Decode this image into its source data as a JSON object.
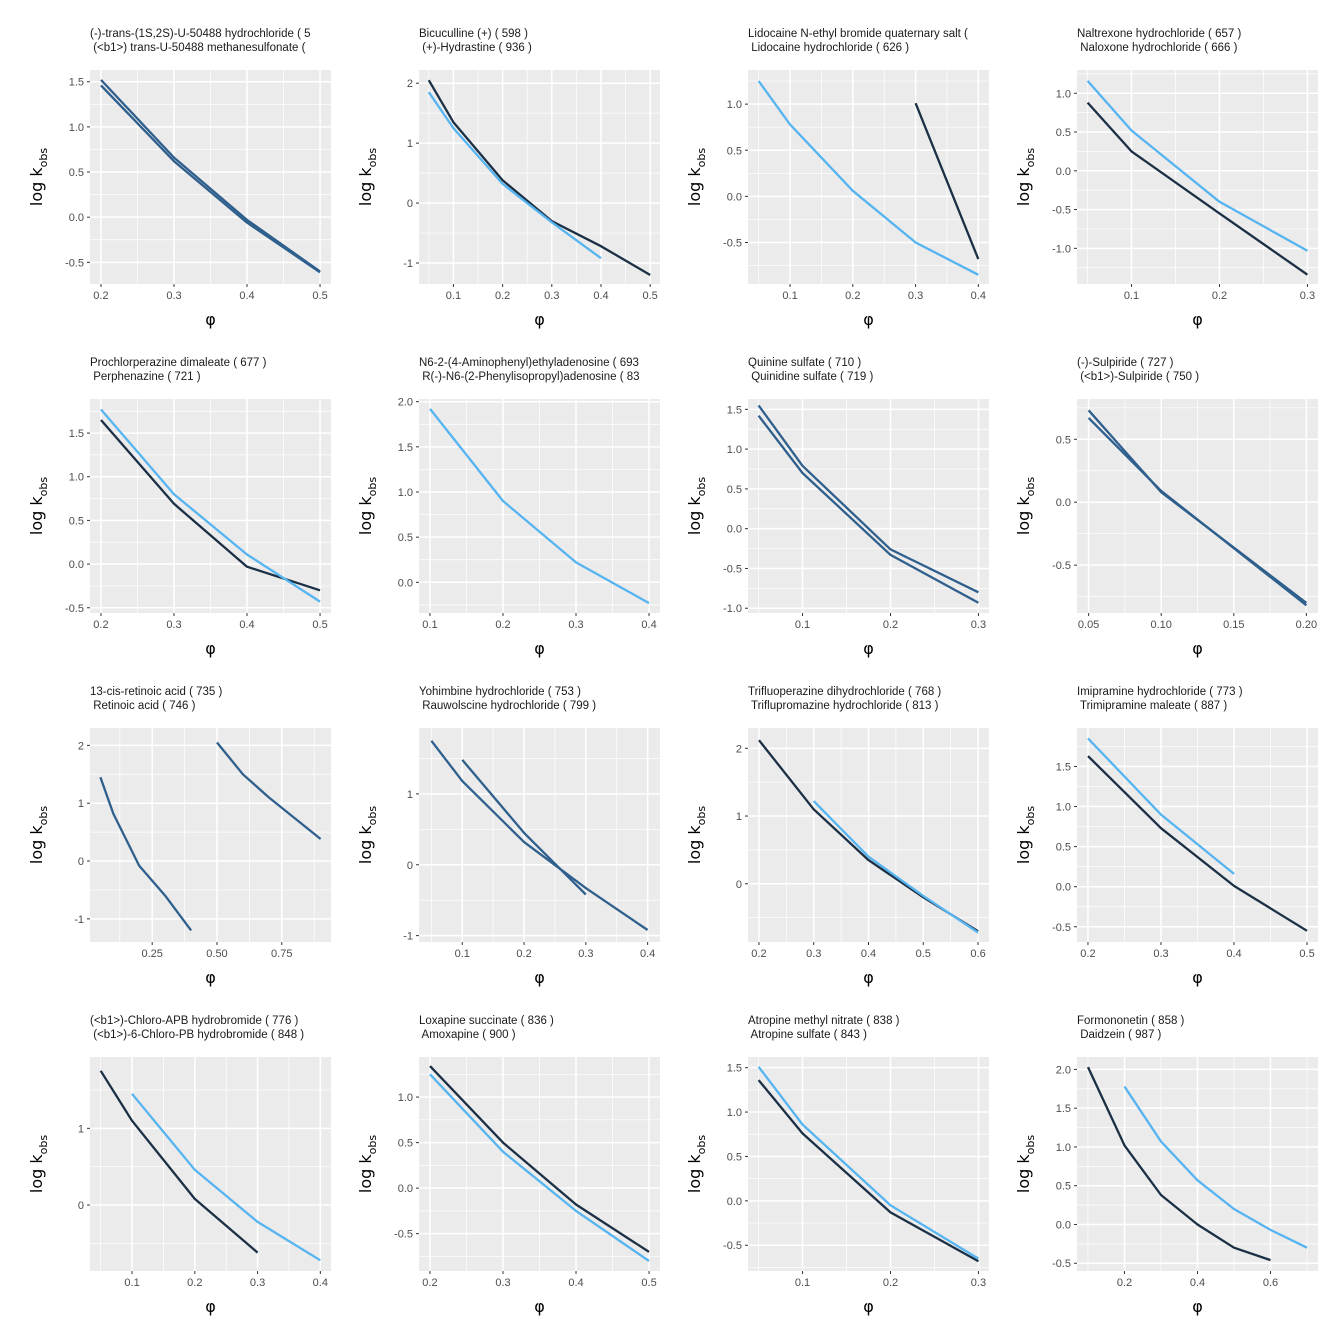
{
  "axis_labels": {
    "x": "φ",
    "y_main": "log k",
    "y_sub": "obs"
  },
  "colors": {
    "dark": "#1B2F45",
    "light": "#56B4F0",
    "panel_bg": "#EBEBEB",
    "grid": "#FFFFFF"
  },
  "chart_data": [
    {
      "type": "line",
      "title": [
        "(-)-trans-(1S,2S)-U-50488 hydrochloride ( 5",
        " (<b1>) trans-U-50488 methanesulfonate ("
      ],
      "xlim": [
        0.185,
        0.515
      ],
      "ylim": [
        -0.74,
        1.63
      ],
      "xticks": [
        0.2,
        0.3,
        0.4,
        0.5
      ],
      "yticks": [
        -0.5,
        0.0,
        0.5,
        1.0,
        1.5
      ],
      "series": [
        {
          "color": "#2F5F8C",
          "x": [
            0.2,
            0.3,
            0.4,
            0.5
          ],
          "y": [
            1.52,
            0.66,
            -0.03,
            -0.6
          ]
        },
        {
          "color": "#2F5F8C",
          "x": [
            0.2,
            0.3,
            0.4,
            0.5
          ],
          "y": [
            1.46,
            0.62,
            -0.06,
            -0.61
          ]
        }
      ]
    },
    {
      "type": "line",
      "title": [
        "Bicuculline (+) ( 598 )",
        " (+)-Hydrastine ( 936 )"
      ],
      "xlim": [
        0.03,
        0.52
      ],
      "ylim": [
        -1.35,
        2.22
      ],
      "xticks": [
        0.1,
        0.2,
        0.3,
        0.4,
        0.5
      ],
      "yticks": [
        -1,
        0,
        1,
        2
      ],
      "series": [
        {
          "color": "#1B2F45",
          "x": [
            0.05,
            0.1,
            0.2,
            0.3,
            0.4,
            0.5
          ],
          "y": [
            2.05,
            1.35,
            0.38,
            -0.3,
            -0.72,
            -1.2
          ]
        },
        {
          "color": "#56B4F0",
          "x": [
            0.05,
            0.1,
            0.2,
            0.3,
            0.4
          ],
          "y": [
            1.85,
            1.25,
            0.32,
            -0.32,
            -0.92
          ]
        }
      ]
    },
    {
      "type": "line",
      "title": [
        "Lidocaine N-ethyl bromide quaternary salt (",
        " Lidocaine hydrochloride ( 626 )"
      ],
      "xlim": [
        0.033,
        0.417
      ],
      "ylim": [
        -0.95,
        1.37
      ],
      "xticks": [
        0.1,
        0.2,
        0.3,
        0.4
      ],
      "yticks": [
        -0.5,
        0.0,
        0.5,
        1.0
      ],
      "series": [
        {
          "color": "#1B2F45",
          "x": [
            0.3,
            0.4
          ],
          "y": [
            1.01,
            -0.68
          ]
        },
        {
          "color": "#56B4F0",
          "x": [
            0.05,
            0.1,
            0.2,
            0.3,
            0.4
          ],
          "y": [
            1.25,
            0.78,
            0.06,
            -0.5,
            -0.85
          ]
        }
      ]
    },
    {
      "type": "line",
      "title": [
        "Naltrexone hydrochloride ( 657 )",
        " Naloxone hydrochloride ( 666 )"
      ],
      "xlim": [
        0.038,
        0.312
      ],
      "ylim": [
        -1.46,
        1.3
      ],
      "xticks": [
        0.1,
        0.2,
        0.3
      ],
      "yticks": [
        -1.0,
        -0.5,
        0.0,
        0.5,
        1.0
      ],
      "series": [
        {
          "color": "#1B2F45",
          "x": [
            0.05,
            0.1,
            0.2,
            0.3
          ],
          "y": [
            0.88,
            0.25,
            -0.55,
            -1.34
          ]
        },
        {
          "color": "#56B4F0",
          "x": [
            0.05,
            0.1,
            0.2,
            0.3
          ],
          "y": [
            1.16,
            0.52,
            -0.4,
            -1.03
          ]
        }
      ]
    },
    {
      "type": "line",
      "title": [
        "Prochlorperazine dimaleate ( 677 )",
        " Perphenazine ( 721 )"
      ],
      "xlim": [
        0.185,
        0.515
      ],
      "ylim": [
        -0.56,
        1.89
      ],
      "xticks": [
        0.2,
        0.3,
        0.4,
        0.5
      ],
      "yticks": [
        -0.5,
        0.0,
        0.5,
        1.0,
        1.5
      ],
      "series": [
        {
          "color": "#1B2F45",
          "x": [
            0.2,
            0.3,
            0.4,
            0.5
          ],
          "y": [
            1.65,
            0.69,
            -0.03,
            -0.3
          ]
        },
        {
          "color": "#56B4F0",
          "x": [
            0.2,
            0.3,
            0.4,
            0.5
          ],
          "y": [
            1.77,
            0.8,
            0.11,
            -0.43
          ]
        }
      ]
    },
    {
      "type": "line",
      "title": [
        "N6-2-(4-Aminophenyl)ethyladenosine ( 693",
        " R(-)-N6-(2-Phenylisopropyl)adenosine ( 83"
      ],
      "xlim": [
        0.085,
        0.415
      ],
      "ylim": [
        -0.34,
        2.03
      ],
      "xticks": [
        0.1,
        0.2,
        0.3,
        0.4
      ],
      "yticks": [
        0.0,
        0.5,
        1.0,
        1.5,
        2.0
      ],
      "series": [
        {
          "color": "#56B4F0",
          "x": [
            0.1,
            0.2,
            0.3,
            0.4
          ],
          "y": [
            1.92,
            0.9,
            0.22,
            -0.23
          ]
        }
      ]
    },
    {
      "type": "line",
      "title": [
        "Quinine sulfate ( 710 )",
        " Quinidine sulfate ( 719 )"
      ],
      "xlim": [
        0.038,
        0.312
      ],
      "ylim": [
        -1.06,
        1.63
      ],
      "xticks": [
        0.1,
        0.2,
        0.3
      ],
      "yticks": [
        -1.0,
        -0.5,
        0.0,
        0.5,
        1.0,
        1.5
      ],
      "series": [
        {
          "color": "#2F5F8C",
          "x": [
            0.05,
            0.1,
            0.2,
            0.3
          ],
          "y": [
            1.55,
            0.79,
            -0.26,
            -0.8
          ]
        },
        {
          "color": "#2F5F8C",
          "x": [
            0.05,
            0.1,
            0.2,
            0.3
          ],
          "y": [
            1.42,
            0.7,
            -0.33,
            -0.93
          ]
        }
      ]
    },
    {
      "type": "line",
      "title": [
        "(-)-Sulpiride ( 727 )",
        " (<b1>)-Sulpiride ( 750 )"
      ],
      "xlim": [
        0.042,
        0.208
      ],
      "ylim": [
        -0.88,
        0.82
      ],
      "xticks": [
        0.05,
        0.1,
        0.15,
        0.2
      ],
      "yticks": [
        -0.5,
        0.0,
        0.5
      ],
      "series": [
        {
          "color": "#2F5F8C",
          "x": [
            0.05,
            0.1,
            0.2
          ],
          "y": [
            0.73,
            0.08,
            -0.8
          ]
        },
        {
          "color": "#2F5F8C",
          "x": [
            0.05,
            0.1,
            0.2
          ],
          "y": [
            0.67,
            0.09,
            -0.82
          ]
        }
      ]
    },
    {
      "type": "line",
      "title": [
        "13-cis-retinoic acid ( 735 )",
        " Retinoic acid ( 746 )"
      ],
      "xlim": [
        0.01,
        0.94
      ],
      "ylim": [
        -1.4,
        2.3
      ],
      "xticks": [
        0.25,
        0.5,
        0.75
      ],
      "yticks": [
        -1,
        0,
        1,
        2
      ],
      "series": [
        {
          "color": "#2F5F8C",
          "x": [
            0.05,
            0.1,
            0.2,
            0.3,
            0.4
          ],
          "y": [
            1.45,
            0.82,
            -0.08,
            -0.6,
            -1.2
          ]
        },
        {
          "color": "#2F5F8C",
          "x": [
            0.5,
            0.6,
            0.7,
            0.9
          ],
          "y": [
            2.05,
            1.5,
            1.1,
            0.38
          ]
        }
      ]
    },
    {
      "type": "line",
      "title": [
        "Yohimbine hydrochloride ( 753 )",
        " Rauwolscine hydrochloride ( 799 )"
      ],
      "xlim": [
        0.03,
        0.42
      ],
      "ylim": [
        -1.09,
        1.93
      ],
      "xticks": [
        0.1,
        0.2,
        0.3,
        0.4
      ],
      "yticks": [
        -1,
        0,
        1
      ],
      "series": [
        {
          "color": "#2F5F8C",
          "x": [
            0.05,
            0.1,
            0.2,
            0.3,
            0.4
          ],
          "y": [
            1.75,
            1.18,
            0.32,
            -0.33,
            -0.92
          ]
        },
        {
          "color": "#2F5F8C",
          "x": [
            0.1,
            0.2,
            0.3
          ],
          "y": [
            1.48,
            0.45,
            -0.42
          ]
        }
      ]
    },
    {
      "type": "line",
      "title": [
        "Trifluoperazine dihydrochloride ( 768 )",
        " Triflupromazine hydrochloride ( 813 )"
      ],
      "xlim": [
        0.18,
        0.62
      ],
      "ylim": [
        -0.86,
        2.3
      ],
      "xticks": [
        0.2,
        0.3,
        0.4,
        0.5,
        0.6
      ],
      "yticks": [
        0,
        1,
        2
      ],
      "series": [
        {
          "color": "#1B2F45",
          "x": [
            0.2,
            0.3,
            0.4,
            0.5,
            0.6
          ],
          "y": [
            2.12,
            1.1,
            0.35,
            -0.2,
            -0.7
          ]
        },
        {
          "color": "#56B4F0",
          "x": [
            0.3,
            0.4,
            0.5,
            0.6
          ],
          "y": [
            1.22,
            0.4,
            -0.18,
            -0.72
          ]
        }
      ]
    },
    {
      "type": "line",
      "title": [
        "Imipramine hydrochloride ( 773 )",
        " Trimipramine maleate ( 887 )"
      ],
      "xlim": [
        0.185,
        0.515
      ],
      "ylim": [
        -0.69,
        1.98
      ],
      "xticks": [
        0.2,
        0.3,
        0.4,
        0.5
      ],
      "yticks": [
        -0.5,
        0.0,
        0.5,
        1.0,
        1.5
      ],
      "series": [
        {
          "color": "#1B2F45",
          "x": [
            0.2,
            0.3,
            0.4,
            0.5
          ],
          "y": [
            1.63,
            0.73,
            0.01,
            -0.55
          ]
        },
        {
          "color": "#56B4F0",
          "x": [
            0.2,
            0.3,
            0.4
          ],
          "y": [
            1.85,
            0.9,
            0.16
          ]
        }
      ]
    },
    {
      "type": "line",
      "title": [
        "(<b1>)-Chloro-APB hydrobromide ( 776 )",
        " (<b1>)-6-Chloro-PB hydrobromide ( 848 )"
      ],
      "xlim": [
        0.033,
        0.417
      ],
      "ylim": [
        -0.86,
        1.93
      ],
      "xticks": [
        0.1,
        0.2,
        0.3,
        0.4
      ],
      "yticks": [
        0,
        1
      ],
      "series": [
        {
          "color": "#1B2F45",
          "x": [
            0.05,
            0.1,
            0.2,
            0.3
          ],
          "y": [
            1.75,
            1.1,
            0.08,
            -0.62
          ]
        },
        {
          "color": "#56B4F0",
          "x": [
            0.1,
            0.2,
            0.3,
            0.4
          ],
          "y": [
            1.45,
            0.46,
            -0.22,
            -0.72
          ]
        }
      ]
    },
    {
      "type": "line",
      "title": [
        "Loxapine succinate ( 836 )",
        " Amoxapine ( 900 )"
      ],
      "xlim": [
        0.185,
        0.515
      ],
      "ylim": [
        -0.91,
        1.44
      ],
      "xticks": [
        0.2,
        0.3,
        0.4,
        0.5
      ],
      "yticks": [
        -0.5,
        0.0,
        0.5,
        1.0
      ],
      "series": [
        {
          "color": "#1B2F45",
          "x": [
            0.2,
            0.3,
            0.4,
            0.5
          ],
          "y": [
            1.34,
            0.5,
            -0.18,
            -0.7
          ]
        },
        {
          "color": "#56B4F0",
          "x": [
            0.2,
            0.3,
            0.4,
            0.5
          ],
          "y": [
            1.25,
            0.4,
            -0.25,
            -0.8
          ]
        }
      ]
    },
    {
      "type": "line",
      "title": [
        "Atropine methyl nitrate ( 838 )",
        " Atropine sulfate ( 843 )"
      ],
      "xlim": [
        0.038,
        0.312
      ],
      "ylim": [
        -0.79,
        1.62
      ],
      "xticks": [
        0.1,
        0.2,
        0.3
      ],
      "yticks": [
        -0.5,
        0.0,
        0.5,
        1.0,
        1.5
      ],
      "series": [
        {
          "color": "#1B2F45",
          "x": [
            0.05,
            0.1,
            0.2,
            0.3
          ],
          "y": [
            1.36,
            0.76,
            -0.13,
            -0.68
          ]
        },
        {
          "color": "#56B4F0",
          "x": [
            0.05,
            0.1,
            0.2,
            0.3
          ],
          "y": [
            1.51,
            0.86,
            -0.05,
            -0.65
          ]
        }
      ]
    },
    {
      "type": "line",
      "title": [
        "Formononetin ( 858 )",
        " Daidzein ( 987 )"
      ],
      "xlim": [
        0.07,
        0.73
      ],
      "ylim": [
        -0.6,
        2.16
      ],
      "xticks": [
        0.2,
        0.4,
        0.6
      ],
      "yticks": [
        -0.5,
        0.0,
        0.5,
        1.0,
        1.5,
        2.0
      ],
      "series": [
        {
          "color": "#1B2F45",
          "x": [
            0.1,
            0.2,
            0.3,
            0.4,
            0.5,
            0.6
          ],
          "y": [
            2.03,
            1.02,
            0.38,
            0.0,
            -0.3,
            -0.46
          ]
        },
        {
          "color": "#56B4F0",
          "x": [
            0.2,
            0.3,
            0.4,
            0.5,
            0.6,
            0.7
          ],
          "y": [
            1.78,
            1.07,
            0.57,
            0.2,
            -0.07,
            -0.3
          ]
        }
      ]
    }
  ]
}
